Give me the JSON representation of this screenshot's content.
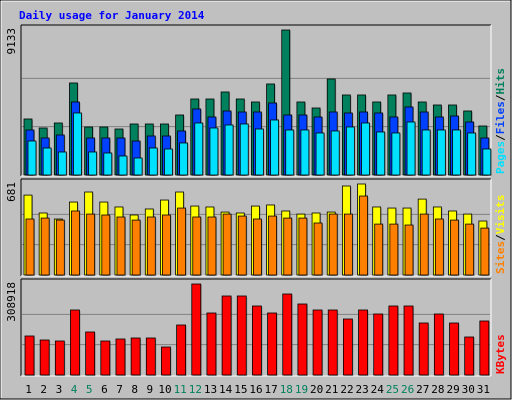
{
  "chart_data": [
    {
      "type": "bar",
      "title": "Daily usage for January 2014",
      "ylim": [
        0,
        9133
      ],
      "yticks": [
        9133
      ],
      "legend_separator": "/",
      "series": [
        {
          "name": "Hits",
          "color": "#00805c",
          "values": [
            3528,
            2961,
            3276,
            5796,
            3024,
            3024,
            2898,
            3213,
            3213,
            3213,
            3780,
            4788,
            4788,
            5229,
            4788,
            4599,
            5733,
            9133,
            4599,
            4221,
            6048,
            5040,
            5040,
            4599,
            5040,
            5166,
            4599,
            4410,
            4410,
            4032,
            3087
          ]
        },
        {
          "name": "Files",
          "color": "#0040ff",
          "values": [
            2835,
            2331,
            2520,
            4599,
            2331,
            2331,
            2331,
            2142,
            2457,
            2457,
            2772,
            4158,
            3654,
            4032,
            3969,
            3969,
            4536,
            3780,
            3780,
            3654,
            3969,
            3906,
            3969,
            3906,
            3654,
            4284,
            3969,
            3654,
            3717,
            3339,
            2331
          ]
        },
        {
          "name": "Pages",
          "color": "#00e0ff",
          "values": [
            2142,
            1701,
            1449,
            3906,
            1449,
            1386,
            1197,
            1071,
            1701,
            1638,
            2016,
            3276,
            2961,
            3150,
            3213,
            2898,
            3465,
            2835,
            2835,
            2646,
            2772,
            3024,
            3276,
            2709,
            2646,
            3339,
            2835,
            2835,
            2835,
            2646,
            1638
          ]
        }
      ]
    },
    {
      "type": "bar",
      "ylim": [
        0,
        681
      ],
      "yticks": [
        681
      ],
      "series": [
        {
          "name": "Visits",
          "color": "#ffff00",
          "values": [
            598,
            464,
            419,
            546,
            621,
            546,
            509,
            449,
            494,
            561,
            621,
            516,
            509,
            471,
            464,
            516,
            524,
            479,
            456,
            464,
            471,
            666,
            681,
            509,
            501,
            501,
            568,
            509,
            479,
            456,
            404
          ]
        },
        {
          "name": "Sites",
          "color": "#ff8000",
          "values": [
            419,
            426,
            411,
            479,
            456,
            449,
            434,
            411,
            434,
            449,
            501,
            434,
            434,
            456,
            441,
            419,
            441,
            426,
            426,
            389,
            456,
            456,
            591,
            381,
            381,
            374,
            456,
            419,
            411,
            381,
            351
          ]
        }
      ]
    },
    {
      "type": "bar",
      "ylim": [
        0,
        308918
      ],
      "yticks": [
        308918
      ],
      "categories": [
        "1",
        "2",
        "3",
        "4",
        "5",
        "6",
        "7",
        "8",
        "9",
        "10",
        "11",
        "12",
        "13",
        "14",
        "15",
        "16",
        "17",
        "18",
        "19",
        "20",
        "21",
        "22",
        "23",
        "24",
        "25",
        "26",
        "27",
        "28",
        "29",
        "30",
        "31"
      ],
      "category_colors": [
        "#000000",
        "#000000",
        "#000000",
        "#00805c",
        "#00805c",
        "#000000",
        "#000000",
        "#000000",
        "#000000",
        "#000000",
        "#00805c",
        "#00805c",
        "#000000",
        "#000000",
        "#000000",
        "#000000",
        "#000000",
        "#00805c",
        "#00805c",
        "#000000",
        "#000000",
        "#000000",
        "#000000",
        "#000000",
        "#00805c",
        "#00805c",
        "#000000",
        "#000000",
        "#000000",
        "#000000",
        "#000000"
      ],
      "series": [
        {
          "name": "KBytes",
          "color": "#ff0000",
          "values": [
            132405,
            118825,
            115430,
            220675,
            145985,
            115430,
            122220,
            125615,
            125615,
            95060,
            169750,
            308918,
            210490,
            268205,
            268205,
            234255,
            210490,
            274995,
            241045,
            220675,
            220675,
            190120,
            220675,
            207095,
            234255,
            234255,
            176540,
            207095,
            176540,
            129010,
            183330
          ]
        }
      ]
    }
  ]
}
